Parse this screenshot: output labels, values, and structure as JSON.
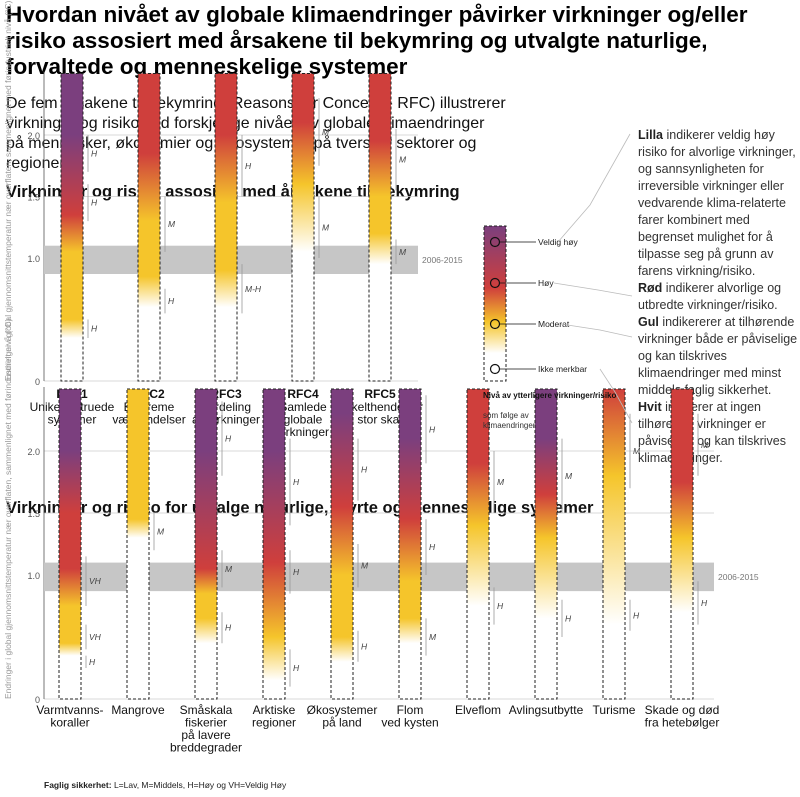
{
  "title": "Hvordan nivået av globale klimaendringer påvirker virkninger og/eller risiko assosiert med årsakene til bekymring og utvalgte naturlige, forvaltede og menneskelige systemer",
  "intro": "De fem årsakene til bekymring  (Reasons for Concern - RFC) illustrerer virkninger og risiko ved forskjellige nivåer av globale klimaendringer på mennesker, økonomier og økosystemer på tvers av sektorer og regioner",
  "section1_title": "Virkninger og risiko assosiert med årsakene til bekymring",
  "section2_title": "Virkninger og risiko for utvalge naturlige, styrte og menneskelige systemer",
  "y_axis_label": "Endringer i global gjennomsnittstemperatur nær overflaten, sammenlignet med førindustrielt nivå (°C)",
  "band_label": "2006-2015",
  "colors": {
    "purple": "#7b3f7e",
    "red": "#cf3f3c",
    "yellow": "#f5c52b",
    "white": "#ffffff",
    "band": "#c6c6c6",
    "gridline": "#cccccc"
  },
  "scale_legend": {
    "levels": [
      "Veldig høy",
      "Høy",
      "Moderat",
      "Ikke merkbar"
    ],
    "title": "Nivå av ytterligere virkninger/risiko",
    "subtitle": "som følge av klimaendringer"
  },
  "legend_text": {
    "lilla_word": "Lilla",
    "lilla_text": "indikerer veldig høy risiko for alvorlige virkninger, og sannsynligheten for irreversible virkninger eller vedvarende klima-relaterte farer kombinert med begrenset mulighet for å tilpasse seg på grunn av farens virkning/risiko.",
    "rod_word": "Rød",
    "rod_text": "indikerer alvorlige og utbredte virkninger/risiko.",
    "gul_word": "Gul",
    "gul_text": "indikererer at tilhørende virkninger både er påviselige og kan tilskrives klimaendringer med minst middels faglig sikkerhet.",
    "hvit_word": "Hvit",
    "hvit_text": "indikerer at ingen tilhørende virkninger er påviselige og kan tilskrives klimaendringer."
  },
  "confidence_note": {
    "label": "Faglig sikkerhet:",
    "text": "L=Lav, M=Middels, H=Høy og VH=Veldig Høy"
  },
  "chart_data": [
    {
      "type": "bar",
      "ylabel": "Endringer i global gjennomsnittstemperatur nær overflaten, sammenlignet med førindustrielt nivå (°C)",
      "ylim": [
        0,
        2.5
      ],
      "yticks": [
        "0",
        "1.0",
        "1.5",
        "2.0"
      ],
      "band": {
        "label": "2006-2015",
        "range": [
          0.87,
          1.1
        ]
      },
      "gradient": {
        "top": "purple",
        "mid": "red",
        "low": "yellow",
        "bottom": "white"
      },
      "categories": [
        {
          "code": "RFC1",
          "lines": [
            "Unike og truede",
            "systemer"
          ],
          "stops": [
            [
              0,
              "w"
            ],
            [
              0.35,
              "w"
            ],
            [
              0.5,
              "y"
            ],
            [
              1.05,
              "y"
            ],
            [
              1.35,
              "r"
            ],
            [
              2.0,
              "p"
            ],
            [
              2.5,
              "p"
            ]
          ],
          "conf": [
            {
              "range": [
                0.35,
                0.5
              ],
              "label": "H"
            },
            {
              "range": [
                1.3,
                1.6
              ],
              "label": "H"
            },
            {
              "range": [
                1.7,
                2.0
              ],
              "label": "H"
            }
          ]
        },
        {
          "code": "RFC2",
          "lines": [
            "Ekstreme",
            "værhendelser"
          ],
          "stops": [
            [
              0,
              "w"
            ],
            [
              0.6,
              "w"
            ],
            [
              0.85,
              "y"
            ],
            [
              1.3,
              "y"
            ],
            [
              1.85,
              "r"
            ],
            [
              2.5,
              "r"
            ]
          ],
          "conf": [
            {
              "range": [
                0.55,
                0.75
              ],
              "label": "H"
            },
            {
              "range": [
                1.05,
                1.5
              ],
              "label": "M"
            }
          ]
        },
        {
          "code": "RFC3",
          "lines": [
            "Fordeling",
            "av virkninger"
          ],
          "stops": [
            [
              0,
              "w"
            ],
            [
              0.6,
              "w"
            ],
            [
              0.9,
              "y"
            ],
            [
              1.45,
              "y"
            ],
            [
              2.0,
              "r"
            ],
            [
              2.5,
              "r"
            ]
          ],
          "conf": [
            {
              "range": [
                0.55,
                0.95
              ],
              "label": "M-H"
            },
            {
              "range": [
                1.5,
                2.0
              ],
              "label": "H"
            }
          ]
        },
        {
          "code": "RFC4",
          "lines": [
            "Samlede",
            "globale",
            "virkninger"
          ],
          "stops": [
            [
              0,
              "w"
            ],
            [
              1.05,
              "w"
            ],
            [
              1.6,
              "y"
            ],
            [
              2.1,
              "r"
            ],
            [
              2.5,
              "r"
            ]
          ],
          "conf": [
            {
              "range": [
                1.0,
                1.5
              ],
              "label": "M"
            },
            {
              "range": [
                1.75,
                2.3
              ],
              "label": "M"
            }
          ]
        },
        {
          "code": "RFC5",
          "lines": [
            "Enkelthendelser",
            "i stor skala"
          ],
          "stops": [
            [
              0,
              "w"
            ],
            [
              0.95,
              "w"
            ],
            [
              1.2,
              "y"
            ],
            [
              1.5,
              "y"
            ],
            [
              1.95,
              "r"
            ],
            [
              2.5,
              "r"
            ]
          ],
          "conf": [
            {
              "range": [
                0.95,
                1.15
              ],
              "label": "M"
            },
            {
              "range": [
                1.55,
                2.05
              ],
              "label": "M"
            }
          ]
        }
      ]
    },
    {
      "type": "bar",
      "ylabel": "Endringer i global gjennomsnittstemperatur nær overflaten, sammenlignet med førindustrielt nivå (°C)",
      "ylim": [
        0,
        2.5
      ],
      "yticks": [
        "0",
        "1.0",
        "1.5",
        "2.0"
      ],
      "band": {
        "label": "2006-2015",
        "range": [
          0.87,
          1.1
        ]
      },
      "categories": [
        {
          "lines": [
            "Varmtvanns-",
            "koraller"
          ],
          "stops": [
            [
              0,
              "w"
            ],
            [
              0.35,
              "w"
            ],
            [
              0.45,
              "y"
            ],
            [
              0.75,
              "y"
            ],
            [
              1.05,
              "r"
            ],
            [
              1.5,
              "r"
            ],
            [
              2.0,
              "p"
            ],
            [
              2.5,
              "p"
            ]
          ],
          "conf": [
            {
              "range": [
                0.25,
                0.35
              ],
              "label": "H"
            },
            {
              "range": [
                0.4,
                0.6
              ],
              "label": "VH"
            },
            {
              "range": [
                0.75,
                1.15
              ],
              "label": "VH"
            }
          ]
        },
        {
          "lines": [
            "Mangrove"
          ],
          "stops": [
            [
              0,
              "w"
            ],
            [
              1.3,
              "w"
            ],
            [
              1.45,
              "y"
            ],
            [
              2.5,
              "y"
            ]
          ],
          "conf": [
            {
              "range": [
                1.2,
                1.5
              ],
              "label": "M"
            }
          ]
        },
        {
          "lines": [
            "Småskala",
            "fiskerier",
            "på lavere",
            "breddegrader"
          ],
          "stops": [
            [
              0,
              "w"
            ],
            [
              0.45,
              "w"
            ],
            [
              0.65,
              "y"
            ],
            [
              0.85,
              "y"
            ],
            [
              1.05,
              "r"
            ],
            [
              2.0,
              "p"
            ],
            [
              2.5,
              "p"
            ]
          ],
          "conf": [
            {
              "range": [
                0.45,
                0.7
              ],
              "label": "H"
            },
            {
              "range": [
                0.9,
                1.2
              ],
              "label": "M"
            },
            {
              "range": [
                1.8,
                2.4
              ],
              "label": "H"
            }
          ]
        },
        {
          "lines": [
            "Arktiske",
            "regioner"
          ],
          "stops": [
            [
              0,
              "w"
            ],
            [
              0.15,
              "w"
            ],
            [
              0.5,
              "y"
            ],
            [
              1.1,
              "r"
            ],
            [
              2.0,
              "p"
            ],
            [
              2.5,
              "p"
            ]
          ],
          "conf": [
            {
              "range": [
                0.1,
                0.4
              ],
              "label": "H"
            },
            {
              "range": [
                0.85,
                1.2
              ],
              "label": "H"
            },
            {
              "range": [
                1.4,
                2.1
              ],
              "label": "H"
            }
          ]
        },
        {
          "lines": [
            "Økosystemer",
            "på land"
          ],
          "stops": [
            [
              0,
              "w"
            ],
            [
              0.3,
              "w"
            ],
            [
              0.5,
              "y"
            ],
            [
              1.0,
              "y"
            ],
            [
              1.55,
              "r"
            ],
            [
              2.3,
              "p"
            ],
            [
              2.5,
              "p"
            ]
          ],
          "conf": [
            {
              "range": [
                0.3,
                0.55
              ],
              "label": "H"
            },
            {
              "range": [
                0.9,
                1.25
              ],
              "label": "M"
            },
            {
              "range": [
                1.6,
                2.1
              ],
              "label": "H"
            }
          ]
        },
        {
          "lines": [
            "Flom",
            "ved kysten"
          ],
          "stops": [
            [
              0,
              "w"
            ],
            [
              0.45,
              "w"
            ],
            [
              0.65,
              "y"
            ],
            [
              0.95,
              "y"
            ],
            [
              1.45,
              "r"
            ],
            [
              2.1,
              "p"
            ],
            [
              2.5,
              "p"
            ]
          ],
          "conf": [
            {
              "range": [
                0.35,
                0.65
              ],
              "label": "M"
            },
            {
              "range": [
                1.0,
                1.45
              ],
              "label": "H"
            },
            {
              "range": [
                1.9,
                2.45
              ],
              "label": "H"
            }
          ]
        },
        {
          "lines": [
            "Elveflom"
          ],
          "stops": [
            [
              0,
              "w"
            ],
            [
              0.75,
              "w"
            ],
            [
              1.4,
              "y"
            ],
            [
              1.9,
              "r"
            ],
            [
              2.5,
              "r"
            ]
          ],
          "conf": [
            {
              "range": [
                0.6,
                0.9
              ],
              "label": "H"
            },
            {
              "range": [
                1.5,
                2.0
              ],
              "label": "M"
            }
          ]
        },
        {
          "lines": [
            "Avlingsutbytte"
          ],
          "stops": [
            [
              0,
              "w"
            ],
            [
              0.65,
              "w"
            ],
            [
              1.3,
              "y"
            ],
            [
              1.65,
              "r"
            ],
            [
              2.1,
              "p"
            ],
            [
              2.5,
              "p"
            ]
          ],
          "conf": [
            {
              "range": [
                0.5,
                0.8
              ],
              "label": "H"
            },
            {
              "range": [
                1.5,
                2.1
              ],
              "label": "M"
            }
          ]
        },
        {
          "lines": [
            "Turisme"
          ],
          "stops": [
            [
              0,
              "w"
            ],
            [
              0.6,
              "w"
            ],
            [
              1.8,
              "y"
            ],
            [
              2.5,
              "r"
            ]
          ],
          "conf": [
            {
              "range": [
                0.55,
                0.8
              ],
              "label": "H"
            },
            {
              "range": [
                1.7,
                2.3
              ],
              "label": "M"
            }
          ]
        },
        {
          "lines": [
            "Skade og død",
            "fra hetebølger"
          ],
          "stops": [
            [
              0,
              "w"
            ],
            [
              0.7,
              "w"
            ],
            [
              1.3,
              "y"
            ],
            [
              1.75,
              "r"
            ],
            [
              2.5,
              "r"
            ]
          ],
          "conf": [
            {
              "range": [
                0.6,
                0.95
              ],
              "label": "H"
            },
            {
              "range": [
                1.8,
                2.3
              ],
              "label": "M"
            }
          ]
        }
      ]
    }
  ]
}
